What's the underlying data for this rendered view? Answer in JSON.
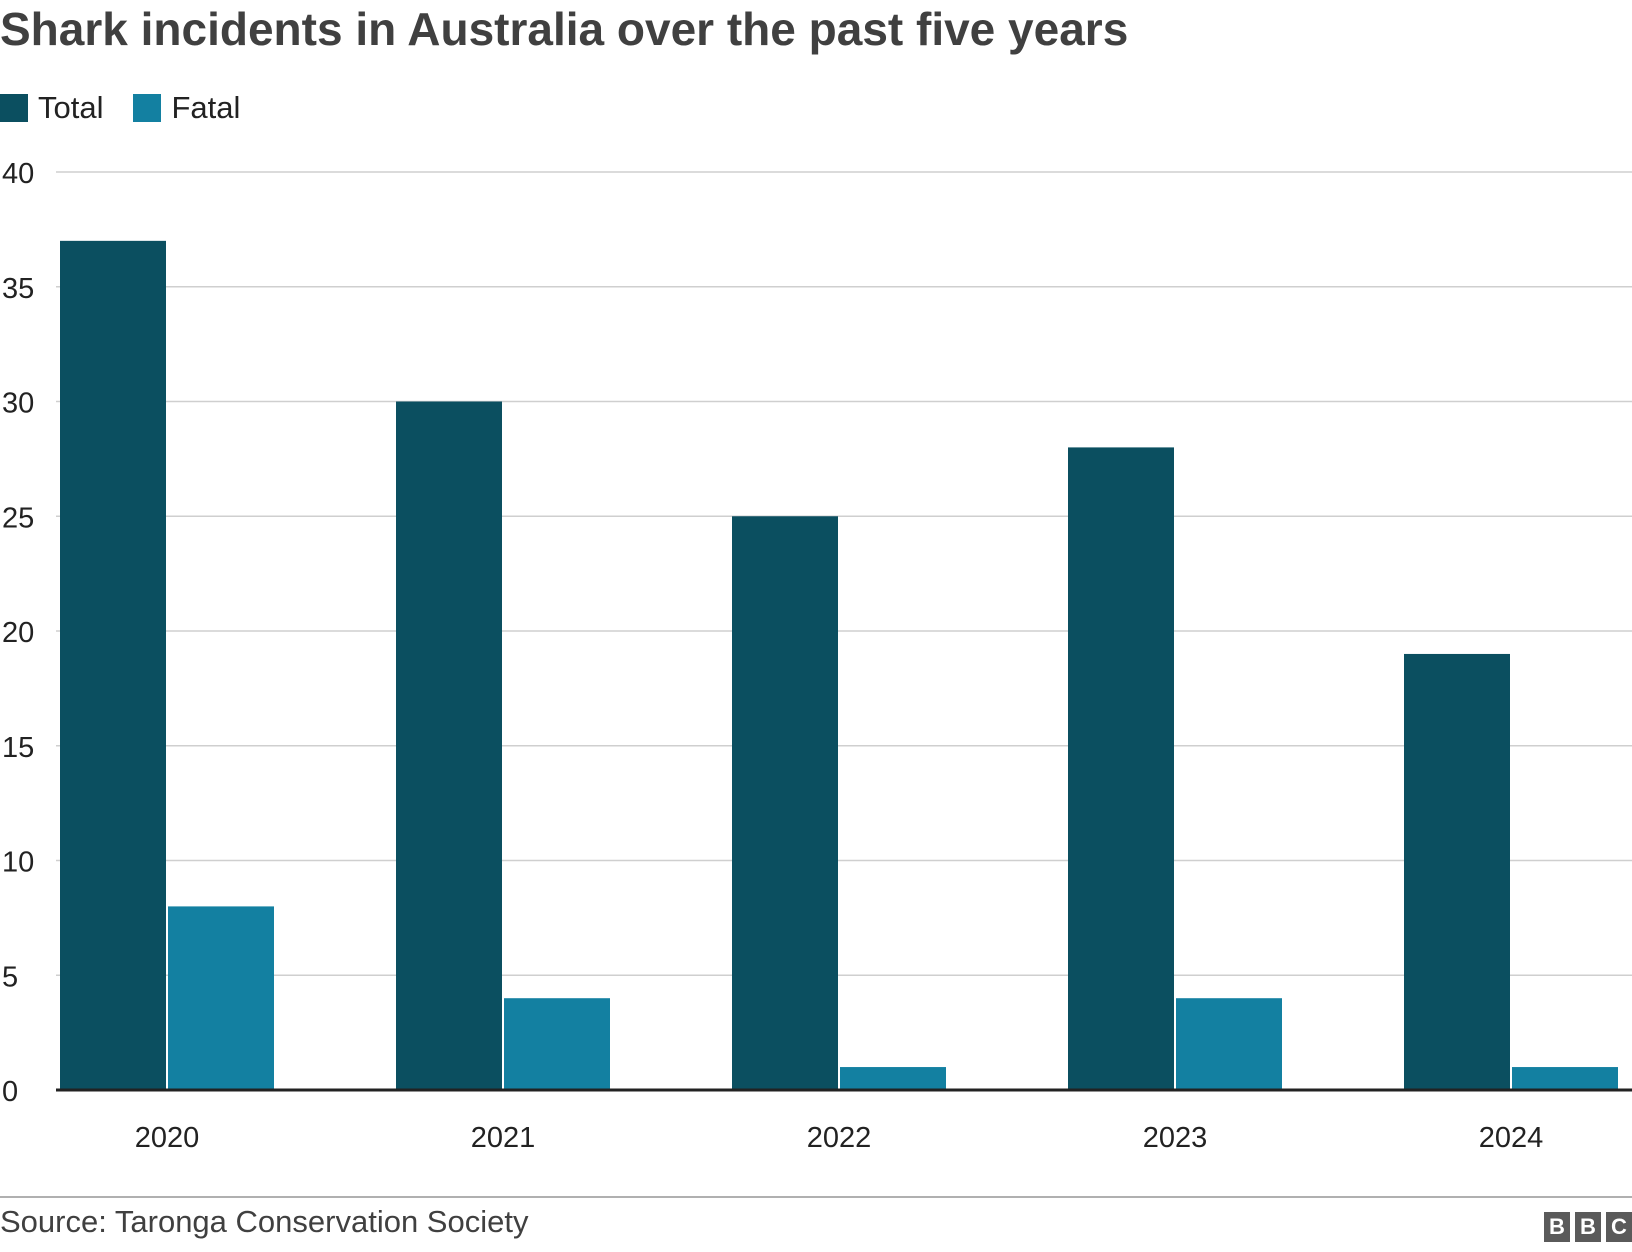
{
  "header": {
    "title": "Shark incidents in Australia over the past five years"
  },
  "legend": {
    "items": [
      {
        "label": "Total",
        "color": "#0b4f60"
      },
      {
        "label": "Fatal",
        "color": "#1380a1"
      }
    ]
  },
  "chart_data": {
    "type": "bar",
    "categories": [
      "2020",
      "2021",
      "2022",
      "2023",
      "2024"
    ],
    "series": [
      {
        "name": "Total",
        "color": "#0b4f60",
        "values": [
          37,
          30,
          25,
          28,
          19
        ]
      },
      {
        "name": "Fatal",
        "color": "#1380a1",
        "values": [
          8,
          4,
          1,
          4,
          1
        ]
      }
    ],
    "title": "Shark incidents in Australia over the past five years",
    "xlabel": "",
    "ylabel": "",
    "ylim": [
      0,
      40
    ],
    "yticks": [
      "0",
      "5",
      "10",
      "15",
      "20",
      "25",
      "30",
      "35",
      "40"
    ],
    "grid": true,
    "legend_position": "top-left"
  },
  "footer": {
    "source": "Source: Taronga Conservation Society",
    "logo_letters": [
      "B",
      "B",
      "C"
    ]
  }
}
